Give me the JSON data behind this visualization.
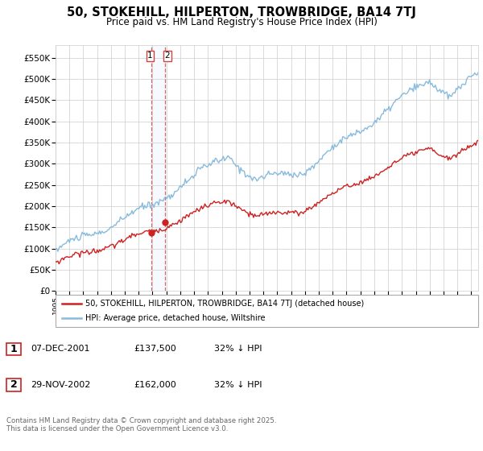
{
  "title": "50, STOKEHILL, HILPERTON, TROWBRIDGE, BA14 7TJ",
  "subtitle": "Price paid vs. HM Land Registry's House Price Index (HPI)",
  "ylabel_ticks": [
    "£0",
    "£50K",
    "£100K",
    "£150K",
    "£200K",
    "£250K",
    "£300K",
    "£350K",
    "£400K",
    "£450K",
    "£500K",
    "£550K"
  ],
  "ytick_values": [
    0,
    50000,
    100000,
    150000,
    200000,
    250000,
    300000,
    350000,
    400000,
    450000,
    500000,
    550000
  ],
  "hpi_color": "#88bbdd",
  "sold_color": "#cc2222",
  "bg_color": "#ffffff",
  "grid_color": "#cccccc",
  "vline_color": "#cc4444",
  "shade_color": "#ddeeff",
  "legend_label1": "50, STOKEHILL, HILPERTON, TROWBRIDGE, BA14 7TJ (detached house)",
  "legend_label2": "HPI: Average price, detached house, Wiltshire",
  "sale1_year": 2001.92,
  "sale1_price": 137500,
  "sale2_year": 2002.92,
  "sale2_price": 162000,
  "vline1_x": 2001.92,
  "vline2_x": 2002.92,
  "table_row1": [
    "1",
    "07-DEC-2001",
    "£137,500",
    "32% ↓ HPI"
  ],
  "table_row2": [
    "2",
    "29-NOV-2002",
    "£162,000",
    "32% ↓ HPI"
  ],
  "footer": "Contains HM Land Registry data © Crown copyright and database right 2025.\nThis data is licensed under the Open Government Licence v3.0.",
  "xlim": [
    1995,
    2025.5
  ],
  "ylim": [
    0,
    580000
  ]
}
